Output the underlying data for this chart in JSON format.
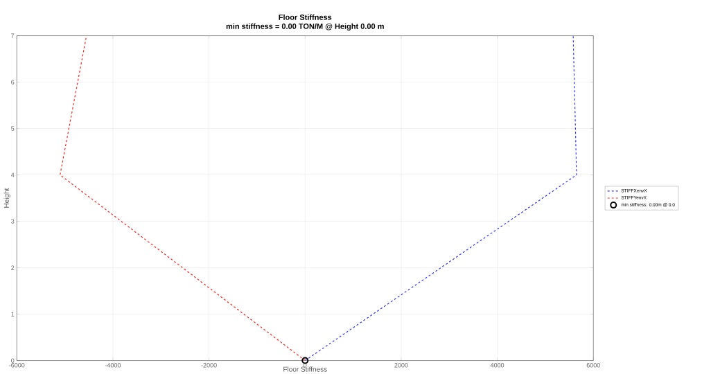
{
  "chart_data": {
    "type": "line",
    "title": "Floor Stiffness",
    "subtitle": "min stiffness = 0.00 TON/M @ Height 0.00 m",
    "xlabel": "Floor Stiffness",
    "ylabel": "Height",
    "series": [
      {
        "name": "STIFFXenvX",
        "color": "#3333ff",
        "x": [
          0,
          5650,
          5580
        ],
        "values": [
          0,
          4,
          7
        ],
        "line_style": "dashed"
      },
      {
        "name": "STIFFYenvX",
        "color": "#ff2222",
        "x": [
          0,
          -5100,
          -4550
        ],
        "values": [
          0,
          4,
          7
        ],
        "line_style": "dashed"
      },
      {
        "name": "min stiffness: 0.00m @ 0.0",
        "type": "scatter",
        "color": "#000000",
        "x": [
          0
        ],
        "values": [
          0
        ],
        "marker": "circle"
      }
    ],
    "xlim": [
      -6000,
      6000
    ],
    "ylim": [
      0,
      7
    ],
    "xticks": [
      -6000,
      -4000,
      -2000,
      0,
      2000,
      4000,
      6000
    ],
    "yticks": [
      0,
      1,
      2,
      3,
      4,
      5,
      6,
      7
    ],
    "grid": true,
    "legend": "right"
  }
}
